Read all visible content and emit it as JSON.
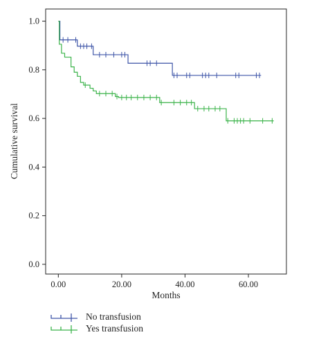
{
  "chart_data": {
    "type": "line",
    "step": true,
    "xlabel": "Months",
    "ylabel": "Cumulative survival",
    "xlim": [
      -4,
      72
    ],
    "ylim": [
      -0.04,
      1.05
    ],
    "xticks": [
      0,
      20,
      40,
      60
    ],
    "xtick_labels": [
      "0.00",
      "20.00",
      "40.00",
      "60.00"
    ],
    "yticks": [
      0.0,
      0.2,
      0.4,
      0.6,
      0.8,
      1.0
    ],
    "ytick_labels": [
      "0.0",
      "0.2",
      "0.4",
      "0.6",
      "0.8",
      "1.0"
    ],
    "grid": false,
    "legend_position": "bottom-left",
    "series": [
      {
        "name": "No transfusion",
        "color": "#3e55a8",
        "steps": [
          [
            0,
            1.0
          ],
          [
            0.5,
            0.923
          ],
          [
            6,
            0.897
          ],
          [
            11,
            0.862
          ],
          [
            22,
            0.827
          ],
          [
            36,
            0.777
          ],
          [
            64,
            0.777
          ]
        ],
        "censored": [
          1.5,
          3,
          5.5,
          7,
          8,
          9,
          10.5,
          13,
          15,
          17.5,
          20,
          21,
          28,
          29,
          31,
          36.5,
          37.5,
          40.5,
          41.5,
          45.5,
          46.5,
          47.5,
          50,
          56,
          57,
          62.5,
          63.5
        ]
      },
      {
        "name": "Yes transfusion",
        "color": "#3bb34a",
        "steps": [
          [
            0,
            1.0
          ],
          [
            0.3,
            0.905
          ],
          [
            1,
            0.868
          ],
          [
            2,
            0.852
          ],
          [
            4,
            0.812
          ],
          [
            5,
            0.79
          ],
          [
            6,
            0.773
          ],
          [
            7,
            0.748
          ],
          [
            8,
            0.737
          ],
          [
            10,
            0.724
          ],
          [
            11,
            0.713
          ],
          [
            12,
            0.702
          ],
          [
            18,
            0.69
          ],
          [
            19,
            0.686
          ],
          [
            32,
            0.665
          ],
          [
            43,
            0.64
          ],
          [
            53,
            0.59
          ],
          [
            68,
            0.59
          ]
        ],
        "censored": [
          8.5,
          13,
          15,
          17,
          18.5,
          20,
          21.5,
          23,
          25,
          27,
          29,
          31,
          32.5,
          36.5,
          38.5,
          40.5,
          42,
          44,
          46,
          47.5,
          49.5,
          51,
          53.5,
          55.5,
          56.5,
          57.5,
          58.5,
          60.5,
          64.5,
          67.5
        ]
      }
    ]
  },
  "legend": {
    "items": [
      {
        "label": "No transfusion",
        "color": "#3e55a8"
      },
      {
        "label": "Yes transfusion",
        "color": "#3bb34a"
      }
    ]
  }
}
